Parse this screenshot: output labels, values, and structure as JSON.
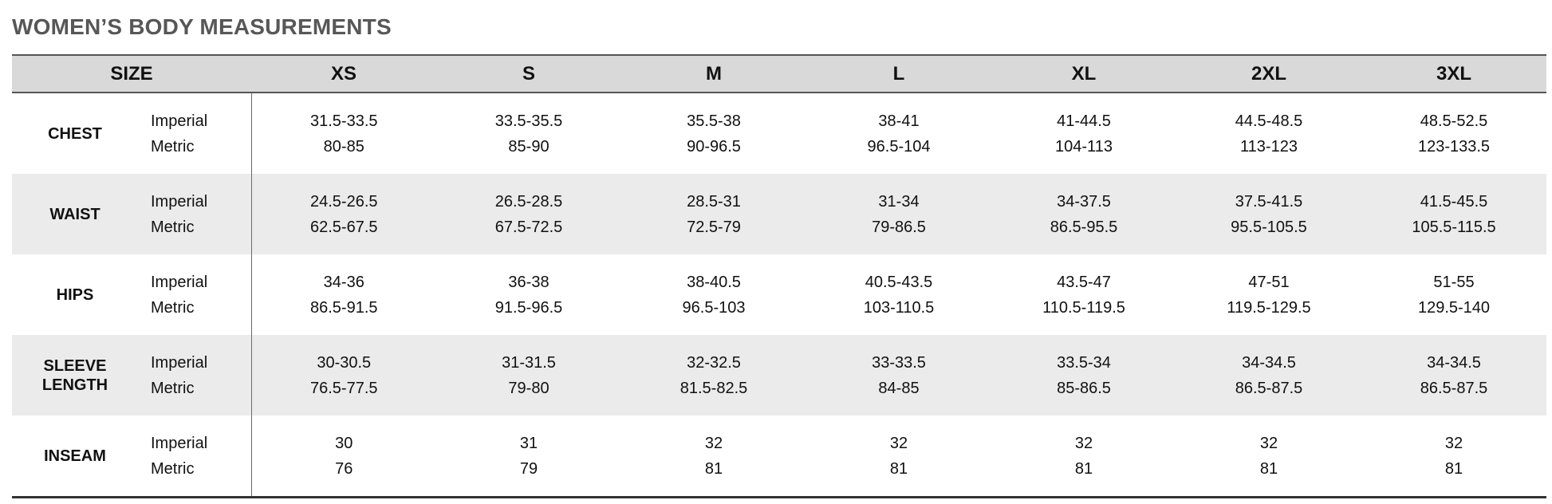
{
  "title": "WOMEN’S BODY MEASUREMENTS",
  "header": {
    "size_label": "SIZE",
    "sizes": [
      "XS",
      "S",
      "M",
      "L",
      "XL",
      "2XL",
      "3XL"
    ]
  },
  "unit_labels": {
    "imperial": "Imperial",
    "metric": "Metric"
  },
  "rows": [
    {
      "label_lines": [
        "CHEST"
      ],
      "imperial": [
        "31.5-33.5",
        "33.5-35.5",
        "35.5-38",
        "38-41",
        "41-44.5",
        "44.5-48.5",
        "48.5-52.5"
      ],
      "metric": [
        "80-85",
        "85-90",
        "90-96.5",
        "96.5-104",
        "104-113",
        "113-123",
        "123-133.5"
      ]
    },
    {
      "label_lines": [
        "WAIST"
      ],
      "imperial": [
        "24.5-26.5",
        "26.5-28.5",
        "28.5-31",
        "31-34",
        "34-37.5",
        "37.5-41.5",
        "41.5-45.5"
      ],
      "metric": [
        "62.5-67.5",
        "67.5-72.5",
        "72.5-79",
        "79-86.5",
        "86.5-95.5",
        "95.5-105.5",
        "105.5-115.5"
      ]
    },
    {
      "label_lines": [
        "HIPS"
      ],
      "imperial": [
        "34-36",
        "36-38",
        "38-40.5",
        "40.5-43.5",
        "43.5-47",
        "47-51",
        "51-55"
      ],
      "metric": [
        "86.5-91.5",
        "91.5-96.5",
        "96.5-103",
        "103-110.5",
        "110.5-119.5",
        "119.5-129.5",
        "129.5-140"
      ]
    },
    {
      "label_lines": [
        "SLEEVE",
        "LENGTH"
      ],
      "imperial": [
        "30-30.5",
        "31-31.5",
        "32-32.5",
        "33-33.5",
        "33.5-34",
        "34-34.5",
        "34-34.5"
      ],
      "metric": [
        "76.5-77.5",
        "79-80",
        "81.5-82.5",
        "84-85",
        "85-86.5",
        "86.5-87.5",
        "86.5-87.5"
      ]
    },
    {
      "label_lines": [
        "INSEAM"
      ],
      "imperial": [
        "30",
        "31",
        "32",
        "32",
        "32",
        "32",
        "32"
      ],
      "metric": [
        "76",
        "79",
        "81",
        "81",
        "81",
        "81",
        "81"
      ]
    }
  ],
  "colors": {
    "header_bg": "#d9d9d9",
    "shaded_row_bg": "#ebebeb",
    "title_color": "#575757"
  }
}
